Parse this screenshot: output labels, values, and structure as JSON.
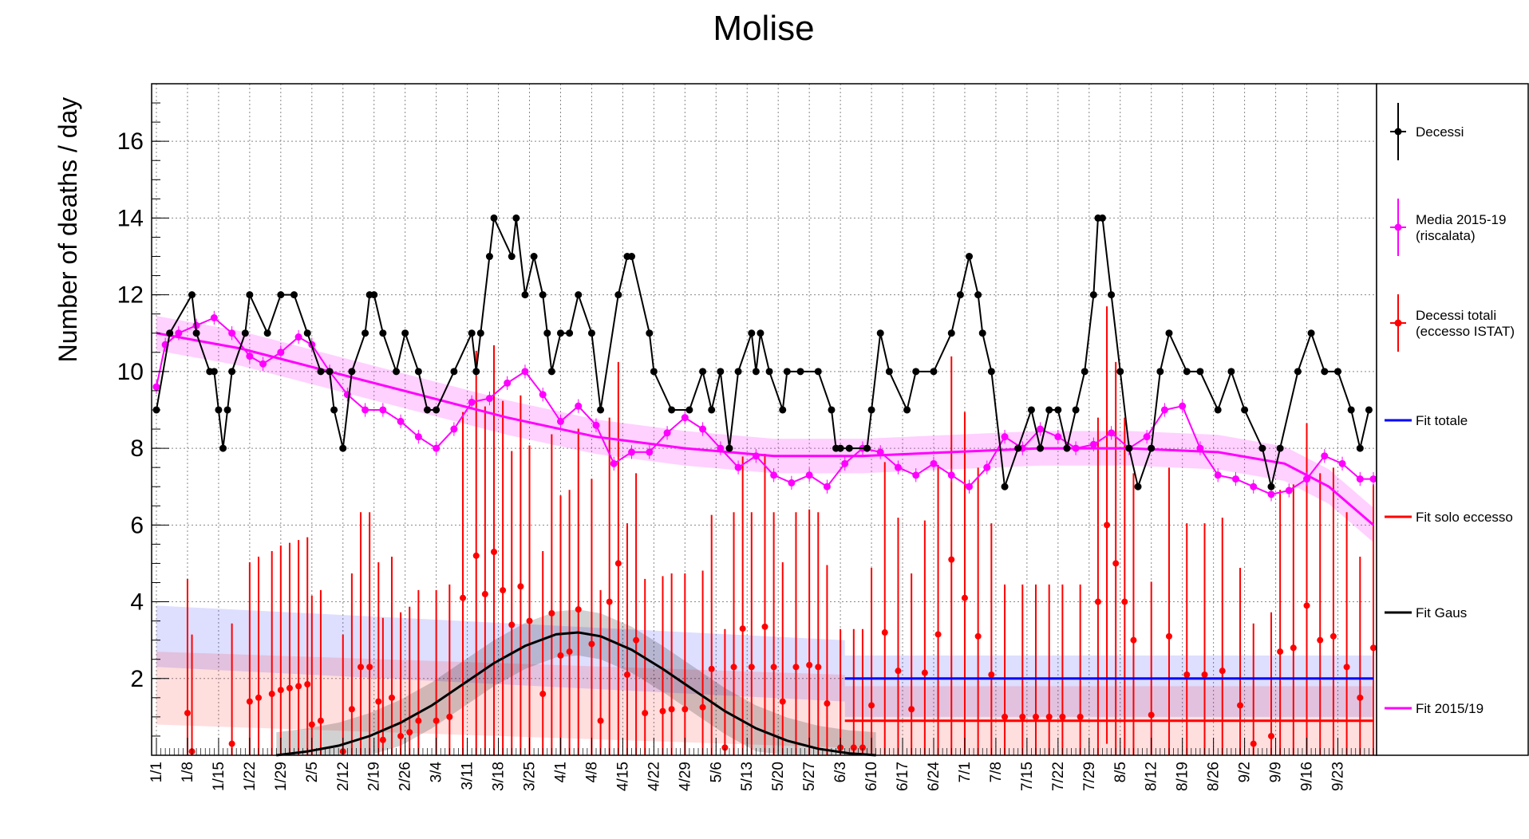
{
  "chart_data": {
    "type": "line",
    "title": "Molise",
    "ylabel": "Number of deaths / day",
    "xlabel": "",
    "ylim": [
      0,
      17.5
    ],
    "x_days": [
      1,
      275
    ],
    "grid": true,
    "yticks": [
      2,
      4,
      6,
      8,
      10,
      12,
      14,
      16
    ],
    "xticks": [
      {
        "day": 1,
        "label": "1/1"
      },
      {
        "day": 8,
        "label": "1/8"
      },
      {
        "day": 15,
        "label": "1/15"
      },
      {
        "day": 22,
        "label": "1/22"
      },
      {
        "day": 29,
        "label": "1/29"
      },
      {
        "day": 36,
        "label": "2/5"
      },
      {
        "day": 43,
        "label": "2/12"
      },
      {
        "day": 50,
        "label": "2/19"
      },
      {
        "day": 57,
        "label": "2/26"
      },
      {
        "day": 64,
        "label": "3/4"
      },
      {
        "day": 71,
        "label": "3/11"
      },
      {
        "day": 78,
        "label": "3/18"
      },
      {
        "day": 85,
        "label": "3/25"
      },
      {
        "day": 92,
        "label": "4/1"
      },
      {
        "day": 99,
        "label": "4/8"
      },
      {
        "day": 106,
        "label": "4/15"
      },
      {
        "day": 113,
        "label": "4/22"
      },
      {
        "day": 120,
        "label": "4/29"
      },
      {
        "day": 127,
        "label": "5/6"
      },
      {
        "day": 134,
        "label": "5/13"
      },
      {
        "day": 141,
        "label": "5/20"
      },
      {
        "day": 148,
        "label": "5/27"
      },
      {
        "day": 155,
        "label": "6/3"
      },
      {
        "day": 162,
        "label": "6/10"
      },
      {
        "day": 169,
        "label": "6/17"
      },
      {
        "day": 176,
        "label": "6/24"
      },
      {
        "day": 183,
        "label": "7/1"
      },
      {
        "day": 190,
        "label": "7/8"
      },
      {
        "day": 197,
        "label": "7/15"
      },
      {
        "day": 204,
        "label": "7/22"
      },
      {
        "day": 211,
        "label": "7/29"
      },
      {
        "day": 218,
        "label": "8/5"
      },
      {
        "day": 225,
        "label": "8/12"
      },
      {
        "day": 232,
        "label": "8/19"
      },
      {
        "day": 239,
        "label": "8/26"
      },
      {
        "day": 246,
        "label": "9/2"
      },
      {
        "day": 253,
        "label": "9/9"
      },
      {
        "day": 260,
        "label": "9/16"
      },
      {
        "day": 267,
        "label": "9/23"
      }
    ],
    "legend": {
      "placement": "right",
      "entries": [
        {
          "key": "decessi",
          "text": "Decessi",
          "color": "#000000"
        },
        {
          "key": "media",
          "text": "Media 2015-19",
          "text2": "(riscalata)",
          "color": "#ff00ff"
        },
        {
          "key": "totali",
          "text": "Decessi totali",
          "text2": "(eccesso ISTAT)",
          "color": "#ff0000"
        },
        {
          "key": "fit_totale",
          "text": "Fit totale",
          "color": "#0000ff"
        },
        {
          "key": "fit_eccesso",
          "text": "Fit solo eccesso",
          "color": "#ff0000"
        },
        {
          "key": "fit_gaus",
          "text": "Fit Gaus",
          "color": "#000000"
        },
        {
          "key": "fit_2015",
          "text": "Fit 2015/19",
          "color": "#ff00ff"
        }
      ]
    },
    "series": [
      {
        "key": "decessi",
        "name": "Decessi",
        "color": "#000000",
        "x": [
          1,
          4,
          9,
          10,
          13,
          14,
          15,
          16,
          17,
          18,
          21,
          22,
          26,
          29,
          32,
          35,
          38,
          40,
          41,
          43,
          45,
          48,
          49,
          50,
          52,
          55,
          57,
          60,
          62,
          64,
          68,
          72,
          73,
          74,
          76,
          77,
          81,
          82,
          84,
          86,
          88,
          89,
          90,
          92,
          94,
          96,
          99,
          101,
          105,
          107,
          108,
          112,
          113,
          117,
          121,
          124,
          126,
          128,
          130,
          132,
          135,
          136,
          137,
          139,
          142,
          143,
          146,
          150,
          153,
          154,
          155,
          157,
          161,
          162,
          164,
          166,
          170,
          172,
          176,
          180,
          182,
          184,
          186,
          187,
          189,
          192,
          195,
          198,
          200,
          202,
          204,
          206,
          208,
          210,
          212,
          213,
          214,
          216,
          218,
          220,
          222,
          225,
          227,
          229,
          233,
          236,
          240,
          243,
          246,
          250,
          252,
          254,
          258,
          261,
          264,
          267,
          270,
          272,
          274
        ],
        "y": [
          9,
          11,
          12,
          11,
          10,
          10,
          9,
          8,
          9,
          10,
          11,
          12,
          11,
          12,
          12,
          11,
          10,
          10,
          9,
          8,
          10,
          11,
          12,
          12,
          11,
          10,
          11,
          10,
          9,
          9,
          10,
          11,
          10,
          11,
          13,
          14,
          13,
          14,
          12,
          13,
          12,
          11,
          10,
          11,
          11,
          12,
          11,
          9,
          12,
          13,
          13,
          11,
          10,
          9,
          9,
          10,
          9,
          10,
          8,
          10,
          11,
          10,
          11,
          10,
          9,
          10,
          10,
          10,
          9,
          8,
          8,
          8,
          8,
          9,
          11,
          10,
          9,
          10,
          10,
          11,
          12,
          13,
          12,
          11,
          10,
          7,
          8,
          9,
          8,
          9,
          9,
          8,
          9,
          10,
          12,
          14,
          14,
          12,
          10,
          8,
          7,
          8,
          10,
          11,
          10,
          10,
          9,
          10,
          9,
          8,
          7,
          8,
          10,
          11,
          10,
          10,
          9,
          8,
          9
        ]
      },
      {
        "key": "media",
        "name": "Media 2015-19 (riscalata)",
        "color": "#ff00ff",
        "x": [
          1,
          3,
          6,
          10,
          14,
          18,
          22,
          25,
          29,
          33,
          36,
          40,
          44,
          48,
          52,
          56,
          60,
          64,
          68,
          72,
          76,
          80,
          84,
          88,
          92,
          96,
          100,
          104,
          108,
          112,
          116,
          120,
          124,
          128,
          132,
          136,
          140,
          144,
          148,
          152,
          156,
          160,
          164,
          168,
          172,
          176,
          180,
          184,
          188,
          192,
          196,
          200,
          204,
          208,
          212,
          216,
          220,
          224,
          228,
          232,
          236,
          240,
          244,
          248,
          252,
          256,
          260,
          264,
          268,
          272,
          275
        ],
        "y": [
          9.6,
          10.7,
          11.0,
          11.2,
          11.4,
          11.0,
          10.4,
          10.2,
          10.5,
          10.9,
          10.7,
          10.0,
          9.4,
          9.0,
          9.0,
          8.7,
          8.3,
          8.0,
          8.5,
          9.2,
          9.3,
          9.7,
          10.0,
          9.4,
          8.7,
          9.1,
          8.6,
          7.6,
          7.9,
          7.9,
          8.4,
          8.8,
          8.5,
          8.0,
          7.5,
          7.8,
          7.3,
          7.1,
          7.3,
          7.0,
          7.6,
          8.0,
          7.9,
          7.5,
          7.3,
          7.6,
          7.3,
          7.0,
          7.5,
          8.3,
          8.0,
          8.5,
          8.3,
          8.0,
          8.1,
          8.4,
          8.0,
          8.3,
          9.0,
          9.1,
          8.0,
          7.3,
          7.2,
          7.0,
          6.8,
          6.9,
          7.2,
          7.8,
          7.6,
          7.2,
          7.2
        ]
      },
      {
        "key": "totali",
        "name": "Decessi totali (eccesso ISTAT)",
        "color": "#ff0000",
        "x": [
          8,
          9,
          18,
          22,
          24,
          27,
          29,
          31,
          33,
          35,
          36,
          38,
          43,
          45,
          47,
          49,
          51,
          52,
          54,
          56,
          58,
          60,
          64,
          67,
          70,
          73,
          75,
          77,
          79,
          81,
          83,
          85,
          88,
          90,
          92,
          94,
          96,
          99,
          101,
          103,
          105,
          107,
          109,
          111,
          115,
          117,
          120,
          124,
          126,
          129,
          131,
          133,
          135,
          138,
          140,
          142,
          145,
          148,
          150,
          152,
          155,
          158,
          160,
          162,
          165,
          168,
          171,
          174,
          177,
          180,
          183,
          186,
          189,
          192,
          196,
          199,
          202,
          205,
          209,
          213,
          215,
          217,
          219,
          221,
          225,
          229,
          233,
          237,
          241,
          245,
          248,
          252,
          254,
          257,
          260,
          263,
          266,
          269,
          272,
          275
        ],
        "y": [
          1.1,
          0.1,
          0.3,
          1.4,
          1.5,
          1.6,
          1.7,
          1.75,
          1.8,
          1.85,
          0.8,
          0.9,
          0.1,
          1.2,
          2.3,
          2.3,
          1.4,
          0.4,
          1.5,
          0.5,
          0.6,
          0.9,
          0.9,
          1.0,
          4.1,
          5.2,
          4.2,
          5.3,
          4.3,
          3.4,
          4.4,
          3.5,
          1.6,
          3.7,
          2.6,
          2.7,
          3.8,
          2.9,
          0.9,
          4.0,
          5.0,
          2.1,
          3.0,
          1.1,
          1.15,
          1.2,
          1.2,
          1.25,
          2.25,
          0.2,
          2.3,
          3.3,
          2.3,
          3.35,
          2.3,
          1.4,
          2.3,
          2.35,
          2.3,
          1.35,
          0.2,
          0.2,
          0.2,
          1.3,
          3.2,
          2.2,
          1.2,
          2.15,
          3.15,
          5.1,
          4.1,
          3.1,
          2.1,
          1.0,
          1.0,
          1.0,
          1.0,
          1.0,
          1.0,
          4.0,
          6.0,
          5.0,
          4.0,
          3.0,
          1.05,
          3.1,
          2.1,
          2.1,
          2.2,
          1.3,
          0.3,
          0.5,
          2.7,
          2.8,
          3.9,
          3.0,
          3.1,
          2.3,
          1.5,
          2.8
        ]
      },
      {
        "key": "fit_totale",
        "name": "Fit totale",
        "color": "#0000ff",
        "x": [
          156,
          275
        ],
        "y": [
          2.0,
          2.0
        ]
      },
      {
        "key": "fit_eccesso",
        "name": "Fit solo eccesso",
        "color": "#ff0000",
        "x": [
          156,
          275
        ],
        "y": [
          0.9,
          0.9
        ]
      },
      {
        "key": "fit_gaus",
        "name": "Fit Gaus",
        "color": "#000000",
        "x": [
          28,
          35,
          42,
          49,
          56,
          63,
          70,
          77,
          84,
          91,
          96,
          101,
          108,
          115,
          122,
          129,
          136,
          143,
          150,
          157,
          163
        ],
        "y": [
          0.0,
          0.1,
          0.25,
          0.5,
          0.85,
          1.3,
          1.85,
          2.4,
          2.85,
          3.15,
          3.2,
          3.1,
          2.75,
          2.25,
          1.7,
          1.15,
          0.7,
          0.38,
          0.17,
          0.05,
          0.0
        ]
      },
      {
        "key": "fit_2015",
        "name": "Fit 2015/19",
        "color": "#ff00ff",
        "x": [
          1,
          20,
          40,
          60,
          80,
          100,
          120,
          140,
          160,
          180,
          200,
          220,
          240,
          255,
          265,
          275
        ],
        "y": [
          11.0,
          10.6,
          10.0,
          9.4,
          8.8,
          8.3,
          8.0,
          7.8,
          7.8,
          7.9,
          8.0,
          8.0,
          7.9,
          7.6,
          7.0,
          6.0
        ]
      }
    ]
  }
}
